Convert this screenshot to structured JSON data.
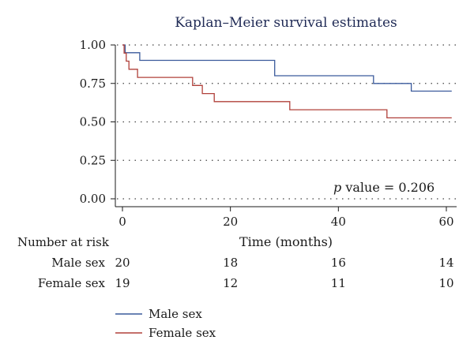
{
  "chart_data": {
    "type": "line",
    "title": "Kaplan–Meier survival estimates",
    "xlabel": "Time (months)",
    "ylabel": "",
    "xlim": [
      0,
      60
    ],
    "ylim": [
      0,
      1
    ],
    "x_ticks": [
      0,
      20,
      40,
      60
    ],
    "x_tick_labels": [
      "0",
      "20",
      "40",
      "60"
    ],
    "y_ticks": [
      0,
      0.25,
      0.5,
      0.75,
      1
    ],
    "y_tick_labels": [
      "0.00",
      "0.25",
      "0.50",
      "0.75",
      "1.00"
    ],
    "grid": "horizontal dotted",
    "annotation": {
      "italic": "p",
      "rest": " value = 0.206"
    },
    "series": [
      {
        "name": "Male sex",
        "color": "#3a5a9c",
        "step": true,
        "x": [
          0,
          0.5,
          0.8,
          3.2,
          28,
          28.2,
          46.5,
          53.5,
          61
        ],
        "y": [
          1.0,
          0.95,
          0.95,
          0.9,
          0.9,
          0.8,
          0.75,
          0.7,
          0.7
        ]
      },
      {
        "name": "Female sex",
        "color": "#b0403a",
        "step": true,
        "x": [
          0,
          0.3,
          0.7,
          1.2,
          2.8,
          13,
          14.8,
          17,
          31,
          49,
          61
        ],
        "y": [
          1.0,
          0.947,
          0.895,
          0.842,
          0.789,
          0.737,
          0.684,
          0.632,
          0.579,
          0.526,
          0.526
        ]
      }
    ],
    "number_at_risk": {
      "label": "Number at risk",
      "times": [
        0,
        20,
        40,
        60
      ],
      "rows": [
        {
          "label": "Male sex",
          "values": [
            "20",
            "18",
            "16",
            "14"
          ]
        },
        {
          "label": "Female sex",
          "values": [
            "19",
            "12",
            "11",
            "10"
          ]
        }
      ]
    },
    "legend": {
      "position": "bottom-left",
      "items": [
        {
          "label": "Male sex",
          "color": "#3a5a9c"
        },
        {
          "label": "Female sex",
          "color": "#b0403a"
        }
      ]
    }
  }
}
